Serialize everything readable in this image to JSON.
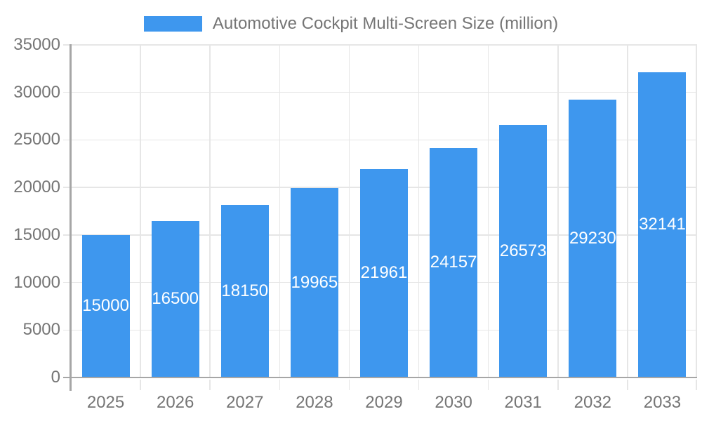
{
  "chart_data": {
    "type": "bar",
    "title": "",
    "legend": {
      "label": "Automotive Cockpit Multi-Screen Size (million)",
      "position": "top-center"
    },
    "series_name": "Automotive Cockpit Multi-Screen Size (million)",
    "categories": [
      "2025",
      "2026",
      "2027",
      "2028",
      "2029",
      "2030",
      "2031",
      "2032",
      "2033"
    ],
    "values": [
      15000,
      16500,
      18150,
      19965,
      21961,
      24157,
      26573,
      29230,
      32141
    ],
    "xlabel": "",
    "ylabel": "",
    "ylim": [
      0,
      35000
    ],
    "yticks": [
      0,
      5000,
      10000,
      15000,
      20000,
      25000,
      30000,
      35000
    ],
    "grid": {
      "horizontal": true,
      "vertical": true
    },
    "bar_labels": {
      "visible": true,
      "placement": "center-of-bar"
    },
    "colors": {
      "bar": "#3e97ee",
      "grid": "#e6e6e6",
      "axis": "#a6a6a6",
      "text": "#757575",
      "bar_label_text": "#ffffff",
      "background": "#ffffff"
    }
  }
}
